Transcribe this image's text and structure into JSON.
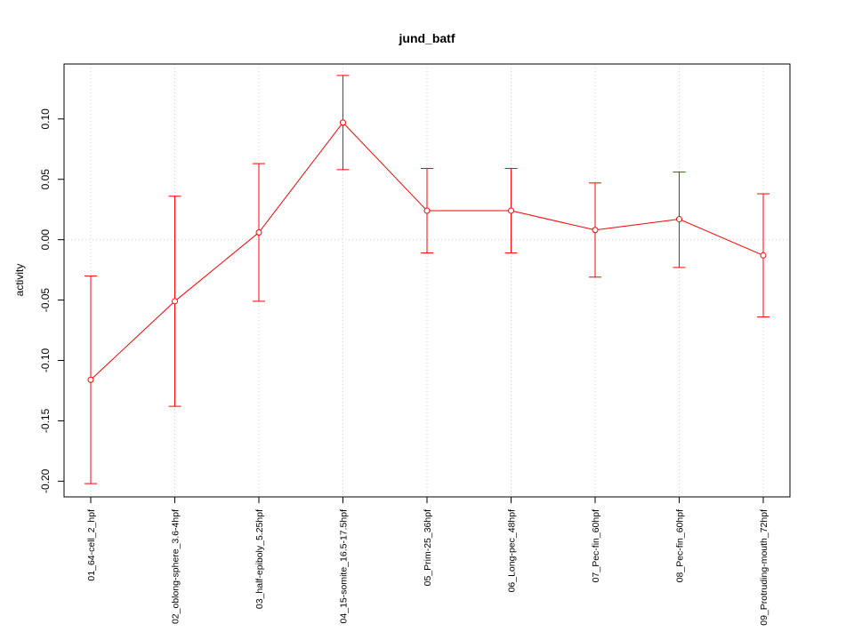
{
  "chart_data": {
    "type": "line",
    "title": "jund_batf",
    "xlabel": "",
    "ylabel": "activity",
    "ylim": [
      -0.213,
      0.1455
    ],
    "yticks": [
      -0.2,
      -0.15,
      -0.1,
      -0.05,
      0.0,
      0.05,
      0.1
    ],
    "ytick_labels": [
      "-0.20",
      "-0.15",
      "-0.10",
      "-0.05",
      "0.00",
      "0.05",
      "0.10"
    ],
    "grid": true,
    "series_color": "#ff0000",
    "grid_color": "#d3d3d3",
    "categories": [
      "01_64-cell_2_hpf",
      "02_oblong-sphere_3.6-4hpf",
      "03_half-epiboly_5.25hpf",
      "04_15-somite_16.5-17.5hpf",
      "05_Prim-25_36hpf",
      "06_Long-pec_48hpf",
      "07_Pec-fin_60hpf",
      "08_Pec-fin_60hpf",
      "09_Protruding-mouth_72hpf"
    ],
    "series": [
      {
        "values": [
          -0.116,
          -0.051,
          0.006,
          0.097,
          0.024,
          0.024,
          0.008,
          0.017,
          -0.013
        ],
        "upper": [
          -0.03,
          0.036,
          0.063,
          0.136,
          0.059,
          0.059,
          0.047,
          0.056,
          0.038
        ],
        "lower": [
          -0.202,
          -0.138,
          -0.051,
          0.058,
          -0.011,
          -0.011,
          -0.031,
          -0.023,
          -0.064
        ]
      }
    ]
  }
}
